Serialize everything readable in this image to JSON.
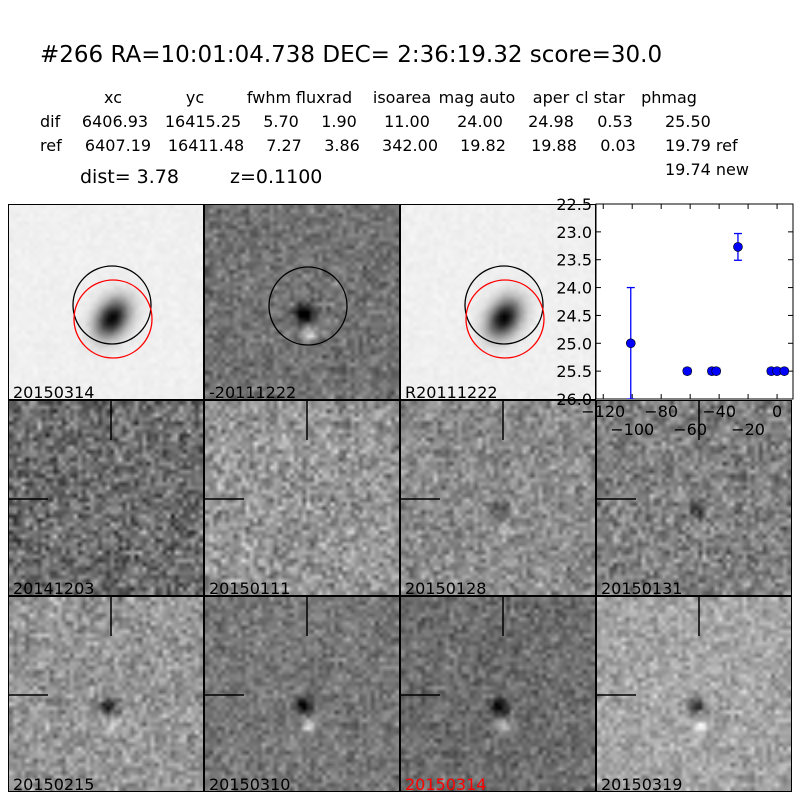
{
  "header": {
    "title": "#266   RA=10:01:04.738 DEC= 2:36:19.32      score=30.0",
    "columns": [
      "xc",
      "yc",
      "fwhm",
      "fluxrad",
      "isoarea",
      "mag auto",
      "aper",
      "cl star",
      "phmag"
    ],
    "rows": [
      {
        "label": "dif",
        "values": [
          "6406.93",
          "16415.25",
          "5.70",
          "1.90",
          "11.00",
          "24.00",
          "24.98",
          "0.53",
          "25.50"
        ]
      },
      {
        "label": "ref",
        "values": [
          "6407.19",
          "16411.48",
          "7.27",
          "3.86",
          "342.00",
          "19.82",
          "19.88",
          "0.03",
          "19.79 ref"
        ]
      }
    ],
    "extra_phmag": "19.74 new",
    "dist": "dist=  3.78",
    "z": "z=0.1100"
  },
  "stamps": [
    {
      "label": "20150314",
      "label_color": "#000000",
      "kind": "new"
    },
    {
      "label": "-20111222",
      "label_color": "#000000",
      "kind": "diff"
    },
    {
      "label": "R20111222",
      "label_color": "#000000",
      "kind": "ref"
    },
    {
      "label": "20141203",
      "label_color": "#000000",
      "kind": "epoch"
    },
    {
      "label": "20150111",
      "label_color": "#000000",
      "kind": "epoch"
    },
    {
      "label": "20150128",
      "label_color": "#000000",
      "kind": "epoch"
    },
    {
      "label": "20150131",
      "label_color": "#000000",
      "kind": "epoch"
    },
    {
      "label": "20150215",
      "label_color": "#000000",
      "kind": "epoch"
    },
    {
      "label": "20150310",
      "label_color": "#000000",
      "kind": "epoch"
    },
    {
      "label": "20150314",
      "label_color": "#ff0000",
      "kind": "epoch"
    },
    {
      "label": "20150319",
      "label_color": "#000000",
      "kind": "epoch"
    }
  ],
  "colors": {
    "points": "#0000ff",
    "circle_new": "#000000",
    "circle_ref": "#ff0000"
  },
  "chart_data": {
    "type": "scatter",
    "title": "",
    "xlabel": "",
    "ylabel": "",
    "xlim": [
      -125,
      11
    ],
    "ylim": [
      26.0,
      22.5
    ],
    "y_inverted": true,
    "grid": false,
    "xticks": [
      -120,
      -100,
      -80,
      -60,
      -40,
      -20,
      0
    ],
    "xtick_labels": [
      "−120",
      "−100",
      "−80",
      "−60",
      "−40",
      "−20",
      "0"
    ],
    "yticks": [
      22.5,
      23.0,
      23.5,
      24.0,
      24.5,
      25.0,
      25.5,
      26.0
    ],
    "ytick_labels": [
      "22.5",
      "23.0",
      "23.5",
      "24.0",
      "24.5",
      "25.0",
      "25.5",
      "26.0"
    ],
    "x": [
      -101,
      -62,
      -45,
      -42,
      -27,
      -4,
      0,
      5
    ],
    "y": [
      25.0,
      25.5,
      25.5,
      25.5,
      23.27,
      25.5,
      25.5,
      25.5
    ],
    "yerr": [
      1.0,
      0.05,
      0.05,
      0.05,
      0.24,
      0.05,
      0.05,
      0.05
    ]
  }
}
